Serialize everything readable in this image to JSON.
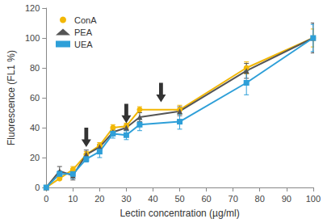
{
  "chart_data": {
    "type": "line",
    "x_label": "Lectin concentration (µg/ml)",
    "y_label": "Fluorescence (FL1 %)",
    "x": [
      0,
      5,
      10,
      15,
      20,
      25,
      30,
      35,
      50,
      75,
      100
    ],
    "series": [
      {
        "name": "ConA",
        "color": "#f2b705",
        "marker": "circle",
        "values": [
          0,
          6,
          12,
          22,
          28,
          40,
          41,
          52,
          52,
          80,
          100
        ],
        "errors": [
          0,
          1,
          2,
          2,
          2,
          2,
          2,
          2,
          3,
          4,
          6
        ]
      },
      {
        "name": "PEA",
        "color": "#555555",
        "marker": "triangle",
        "values": [
          0,
          11,
          8,
          22,
          27,
          37,
          40,
          47,
          51,
          78,
          100
        ],
        "errors": [
          0,
          3,
          3,
          3,
          2,
          2,
          2,
          3,
          3,
          5,
          10
        ]
      },
      {
        "name": "UEA",
        "color": "#2e9fd8",
        "marker": "square",
        "values": [
          0,
          9,
          9,
          19,
          24,
          36,
          35,
          42,
          44,
          70,
          100
        ],
        "errors": [
          0,
          2,
          3,
          2,
          4,
          3,
          3,
          4,
          5,
          8,
          9
        ]
      }
    ],
    "arrows": [
      {
        "x": 15,
        "y": 27
      },
      {
        "x": 30,
        "y": 43
      },
      {
        "x": 43,
        "y": 57
      }
    ],
    "xlim": [
      0,
      100
    ],
    "xticks": [
      0,
      10,
      20,
      30,
      40,
      50,
      60,
      70,
      80,
      90,
      100
    ],
    "ylim": [
      0,
      120
    ],
    "yticks": [
      0,
      20,
      40,
      60,
      80,
      100,
      120
    ],
    "grid": false,
    "legend": "top-left"
  }
}
